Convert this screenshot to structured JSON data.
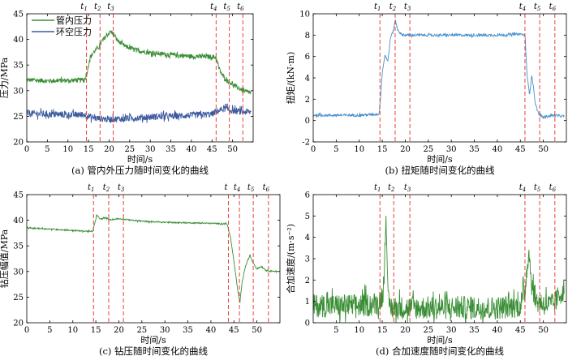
{
  "chart_data": [
    {
      "id": "a",
      "type": "line",
      "caption": "(a) 管内外压力随时间变化的曲线",
      "xlabel": "时间/s",
      "ylabel": "压力/MPa",
      "xlim": [
        0,
        55
      ],
      "ylim": [
        20,
        45
      ],
      "xticks": [
        0,
        5,
        10,
        15,
        20,
        25,
        30,
        35,
        40,
        45,
        50
      ],
      "yticks": [
        20,
        25,
        30,
        35,
        40,
        45
      ],
      "markers": [
        {
          "label": "t",
          "sub": "1",
          "x": 14.5
        },
        {
          "label": "t",
          "sub": "2",
          "x": 17.8
        },
        {
          "label": "t",
          "sub": "3",
          "x": 21.0
        },
        {
          "label": "t",
          "sub": "4",
          "x": 46.0
        },
        {
          "label": "t",
          "sub": "5",
          "x": 49.2
        },
        {
          "label": "t",
          "sub": "6",
          "x": 52.5
        }
      ],
      "legend": {
        "placement": "top-left"
      },
      "series": [
        {
          "name": "管内压力",
          "color": "#3a8f36",
          "noise": 0.45,
          "points": [
            [
              0,
              32.1
            ],
            [
              5,
              31.9
            ],
            [
              10,
              32.0
            ],
            [
              14,
              32.1
            ],
            [
              14.6,
              33.2
            ],
            [
              15.2,
              36.0
            ],
            [
              16,
              37.3
            ],
            [
              17.5,
              38.6
            ],
            [
              19,
              40.4
            ],
            [
              20.3,
              41.5
            ],
            [
              21,
              41.2
            ],
            [
              22,
              39.8
            ],
            [
              24,
              38.6
            ],
            [
              27,
              37.8
            ],
            [
              30,
              37.4
            ],
            [
              35,
              37.0
            ],
            [
              40,
              36.7
            ],
            [
              45,
              36.6
            ],
            [
              46,
              36.5
            ],
            [
              46.6,
              34.5
            ],
            [
              47.5,
              33.0
            ],
            [
              49,
              31.8
            ],
            [
              51,
              30.7
            ],
            [
              53,
              29.8
            ],
            [
              54.5,
              29.6
            ]
          ]
        },
        {
          "name": "环空压力",
          "color": "#3d5a9e",
          "noise": 0.65,
          "points": [
            [
              0,
              25.6
            ],
            [
              5,
              25.4
            ],
            [
              10,
              25.3
            ],
            [
              14,
              25.3
            ],
            [
              15,
              25.0
            ],
            [
              17,
              24.6
            ],
            [
              20,
              24.4
            ],
            [
              25,
              24.6
            ],
            [
              30,
              24.9
            ],
            [
              35,
              25.0
            ],
            [
              40,
              25.2
            ],
            [
              45,
              25.4
            ],
            [
              46,
              25.9
            ],
            [
              48,
              26.5
            ],
            [
              50,
              26.1
            ],
            [
              52,
              25.9
            ],
            [
              54.5,
              25.8
            ]
          ]
        }
      ]
    },
    {
      "id": "b",
      "type": "line",
      "caption": "(b) 扭矩随时间变化的曲线",
      "xlabel": "时间/s",
      "ylabel": "扭矩/(kN·m)",
      "xlim": [
        0,
        55
      ],
      "ylim": [
        -2,
        10
      ],
      "xticks": [
        0,
        5,
        10,
        15,
        20,
        25,
        30,
        35,
        40,
        45,
        50
      ],
      "yticks": [
        -2,
        0,
        2,
        4,
        6,
        8,
        10
      ],
      "markers": [
        {
          "label": "t",
          "sub": "1",
          "x": 14.5
        },
        {
          "label": "t",
          "sub": "2",
          "x": 17.8
        },
        {
          "label": "t",
          "sub": "3",
          "x": 21.0
        },
        {
          "label": "t",
          "sub": "4",
          "x": 46.0
        },
        {
          "label": "t",
          "sub": "5",
          "x": 49.2
        },
        {
          "label": "t",
          "sub": "6",
          "x": 52.5
        }
      ],
      "series": [
        {
          "name": "",
          "color": "#4a90c8",
          "noise": 0.12,
          "points": [
            [
              0,
              0.5
            ],
            [
              5,
              0.5
            ],
            [
              10,
              0.5
            ],
            [
              14.3,
              0.6
            ],
            [
              14.6,
              2.0
            ],
            [
              15,
              4.5
            ],
            [
              15.6,
              6.2
            ],
            [
              16.2,
              5.5
            ],
            [
              16.8,
              7.8
            ],
            [
              17.4,
              8.4
            ],
            [
              17.8,
              9.4
            ],
            [
              18.3,
              8.6
            ],
            [
              19,
              8.1
            ],
            [
              20,
              8.0
            ],
            [
              25,
              8.0
            ],
            [
              30,
              8.0
            ],
            [
              35,
              8.0
            ],
            [
              40,
              8.0
            ],
            [
              45,
              8.1
            ],
            [
              46,
              8.0
            ],
            [
              46.5,
              4.0
            ],
            [
              47,
              2.5
            ],
            [
              47.5,
              4.3
            ],
            [
              48.3,
              1.5
            ],
            [
              49,
              0.6
            ],
            [
              50,
              0.3
            ],
            [
              52,
              0.5
            ],
            [
              54.5,
              0.4
            ]
          ]
        }
      ]
    },
    {
      "id": "c",
      "type": "line",
      "caption": "(c) 钻压随时间变化的曲线",
      "xlabel": "时间/s",
      "ylabel": "钻压幅值/MPa",
      "xlim": [
        0,
        55
      ],
      "ylim": [
        20,
        45
      ],
      "xticks": [
        0,
        5,
        10,
        15,
        20,
        25,
        30,
        35,
        40,
        45,
        50
      ],
      "yticks": [
        20,
        25,
        30,
        35,
        40,
        45
      ],
      "markers": [
        {
          "label": "t",
          "sub": "1",
          "x": 14.5
        },
        {
          "label": "t",
          "sub": "2",
          "x": 17.8
        },
        {
          "label": "t",
          "sub": "3",
          "x": 21.0
        },
        {
          "label": "t",
          "sub": "",
          "x": 43.8
        },
        {
          "label": "t",
          "sub": "4",
          "x": 46.2
        },
        {
          "label": "t",
          "sub": "5",
          "x": 49.2
        },
        {
          "label": "t",
          "sub": "6",
          "x": 52.5
        }
      ],
      "series": [
        {
          "name": "",
          "color": "#3a8f36",
          "noise": 0.12,
          "points": [
            [
              0,
              38.5
            ],
            [
              5,
              38.3
            ],
            [
              10,
              38.0
            ],
            [
              14.3,
              37.8
            ],
            [
              14.8,
              39.5
            ],
            [
              15.2,
              41.0
            ],
            [
              16,
              40.2
            ],
            [
              17,
              40.5
            ],
            [
              18,
              40.1
            ],
            [
              20,
              40.3
            ],
            [
              25,
              39.8
            ],
            [
              30,
              39.6
            ],
            [
              35,
              39.5
            ],
            [
              40,
              39.4
            ],
            [
              43.5,
              39.3
            ],
            [
              44.2,
              37.0
            ],
            [
              45,
              32.0
            ],
            [
              45.8,
              26.5
            ],
            [
              46.3,
              24.0
            ],
            [
              46.8,
              28.0
            ],
            [
              47.5,
              31.0
            ],
            [
              48.5,
              33.2
            ],
            [
              49,
              32.0
            ],
            [
              50,
              30.5
            ],
            [
              51,
              31.0
            ],
            [
              52,
              30.2
            ],
            [
              54.5,
              30.0
            ]
          ]
        }
      ]
    },
    {
      "id": "d",
      "type": "line",
      "caption": "(d) 合加速度随时间变化的曲线",
      "xlabel": "时间/s",
      "ylabel": "合加速度/(m·s⁻²)",
      "xlim": [
        0,
        55
      ],
      "ylim": [
        0,
        6
      ],
      "xticks": [
        5,
        10,
        15,
        20,
        25,
        30,
        35,
        40,
        45,
        50
      ],
      "yticks": [
        0,
        1,
        2,
        3,
        4,
        5,
        6
      ],
      "markers": [
        {
          "label": "t",
          "sub": "1",
          "x": 14.5
        },
        {
          "label": "t",
          "sub": "2",
          "x": 17.5
        },
        {
          "label": "t",
          "sub": "3",
          "x": 21.0
        },
        {
          "label": "t",
          "sub": "4",
          "x": 46.0
        },
        {
          "label": "t",
          "sub": "5",
          "x": 49.2
        },
        {
          "label": "t",
          "sub": "6",
          "x": 52.5
        }
      ],
      "series": [
        {
          "name": "",
          "color": "#3a8f36",
          "noise": 0.55,
          "points": [
            [
              0,
              0.8
            ],
            [
              5,
              0.8
            ],
            [
              10,
              0.8
            ],
            [
              14,
              0.9
            ],
            [
              15.3,
              1.4
            ],
            [
              15.8,
              5.4
            ],
            [
              16.2,
              1.0
            ],
            [
              17,
              0.7
            ],
            [
              20,
              0.7
            ],
            [
              25,
              0.7
            ],
            [
              30,
              0.7
            ],
            [
              35,
              0.7
            ],
            [
              40,
              0.7
            ],
            [
              45,
              0.8
            ],
            [
              46,
              1.5
            ],
            [
              46.8,
              3.4
            ],
            [
              47.5,
              1.8
            ],
            [
              48.5,
              1.0
            ],
            [
              50,
              0.9
            ],
            [
              52,
              0.8
            ],
            [
              54.5,
              1.6
            ]
          ]
        }
      ]
    }
  ]
}
